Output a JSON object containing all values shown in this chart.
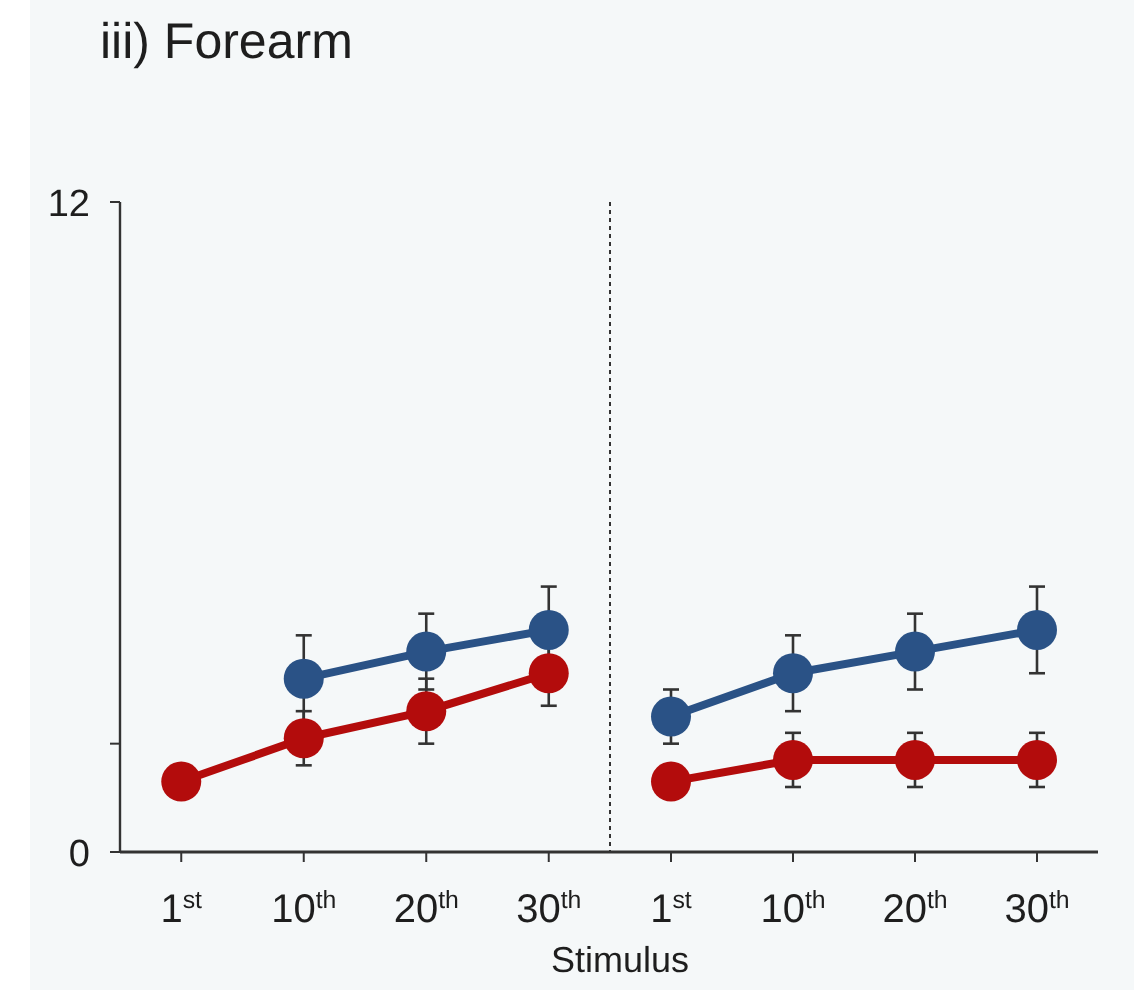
{
  "chart_data": [
    {
      "type": "line",
      "title": "iii) Forearm",
      "categories": [
        "1$^{st}$",
        "10$^{th}$",
        "20$^{th}$",
        "30$^{th}$"
      ],
      "series": [
        {
          "color": "#2a5286",
          "values": [
            null,
            3.2,
            3.7,
            4.1
          ],
          "errors": [
            null,
            0.8,
            0.7,
            0.8
          ]
        },
        {
          "color": "#b30c0c",
          "values": [
            1.3,
            2.1,
            2.6,
            3.3
          ],
          "errors": [
            null,
            0.5,
            0.6,
            0.6
          ]
        }
      ],
      "ylim": [
        0,
        12
      ],
      "yticks": [
        0,
        {
          "value": 2,
          "label": null
        },
        12
      ],
      "marker": "circle"
    },
    {
      "type": "line",
      "xlabel": "Stimulus",
      "categories": [
        "1$^{st}$",
        "10$^{th}$",
        "20$^{th}$",
        "30$^{th}$"
      ],
      "series": [
        {
          "color": "#2a5286",
          "values": [
            2.5,
            3.3,
            3.7,
            4.1
          ],
          "errors": [
            0.5,
            0.7,
            0.7,
            0.8
          ]
        },
        {
          "color": "#b30c0c",
          "values": [
            1.3,
            1.7,
            1.7,
            1.7
          ],
          "errors": [
            null,
            0.5,
            0.5,
            0.5
          ]
        }
      ],
      "ylim": [
        0,
        12
      ],
      "tick_labels": "x",
      "marker": "circle"
    }
  ]
}
